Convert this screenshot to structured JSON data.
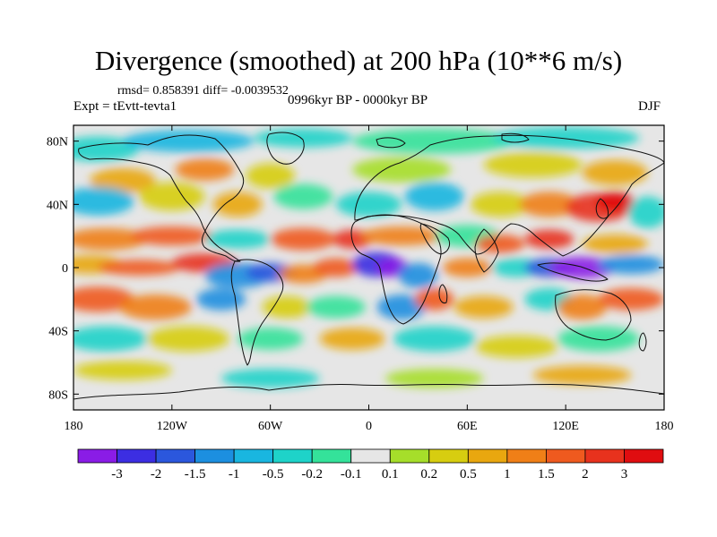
{
  "title": "Divergence (smoothed) at 200 hPa (10**6 m/s)",
  "stats_line": "rmsd= 0.858391 diff= -0.0039532",
  "experiment_line": "Expt = tEvtt-tevta1",
  "period_line": "0996kyr BP - 0000kyr BP",
  "season": "DJF",
  "chart_data": {
    "type": "heatmap",
    "title": "Divergence (smoothed) at 200 hPa (10**6 m/s)",
    "variable": "Divergence (smoothed)",
    "level": "200 hPa",
    "units": "10**6 m/s",
    "x_axis": {
      "range": [
        -180,
        180
      ],
      "ticks": [
        -180,
        -120,
        -60,
        0,
        60,
        120,
        180
      ],
      "tick_labels": [
        "180",
        "120W",
        "60W",
        "0",
        "60E",
        "120E",
        "180"
      ]
    },
    "y_axis": {
      "range": [
        -90,
        90
      ],
      "ticks": [
        80,
        40,
        0,
        -40,
        -80
      ],
      "tick_labels": [
        "80N",
        "40N",
        "0",
        "40S",
        "80S"
      ]
    },
    "colorbar": {
      "labels": [
        "-3",
        "-2",
        "-1.5",
        "-1",
        "-0.5",
        "-0.2",
        "-0.1",
        "0.1",
        "0.2",
        "0.5",
        "1",
        "1.5",
        "2",
        "3"
      ],
      "colors": [
        "#8a1ce6",
        "#3c2ee2",
        "#2b57dd",
        "#1c8fe0",
        "#19b6e0",
        "#1ed3c9",
        "#34e29a",
        "#e6e6e6",
        "#a6de2a",
        "#d7cd10",
        "#e9a70f",
        "#f07f17",
        "#ef5a1f",
        "#e8321d",
        "#e00d10"
      ]
    }
  },
  "icons": {
    "coastline": "coastline-outline"
  }
}
